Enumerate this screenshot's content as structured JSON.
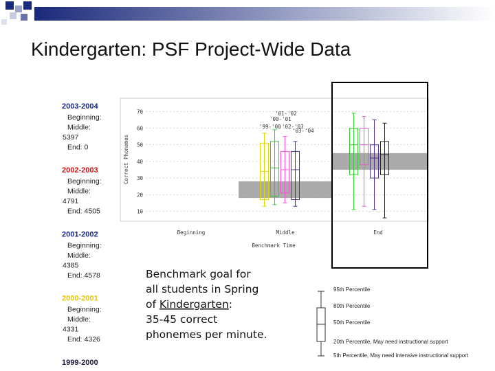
{
  "title": "Kindergarten: PSF Project-Wide Data",
  "sidebar": [
    {
      "year": "2003-2004",
      "color": "#1a2a8a",
      "lines": [
        "Beginning:",
        "Middle:",
        "5397",
        "End: 0"
      ]
    },
    {
      "year": "2002-2003",
      "color": "#cc1111",
      "lines": [
        "Beginning:",
        "Middle:",
        "4791",
        "End: 4505"
      ]
    },
    {
      "year": "2001-2002",
      "color": "#1a2a8a",
      "lines": [
        "Beginning:",
        "Middle:",
        "4385",
        "End: 4578"
      ]
    },
    {
      "year": "2000-2001",
      "color": "#e8c400",
      "lines": [
        "Beginning:",
        "Middle:",
        "4331",
        "End: 4326"
      ]
    },
    {
      "year": "1999-2000",
      "color": "#1a1a40",
      "lines": []
    }
  ],
  "goal_text": [
    [
      "Benchmark goal for"
    ],
    [
      "all students in Spring"
    ],
    [
      "of ",
      "Kindergarten",
      ":"
    ],
    [
      "35-45 correct"
    ],
    [
      "phonemes per minute."
    ]
  ],
  "legend_labels": [
    "95th Percentile",
    "80th Percentile",
    "50th Percentile",
    "20th Percentile, May need instructional support",
    "5th Percentile, May need intensive instructional support"
  ],
  "chart_data": {
    "type": "boxplot",
    "y_label": "Correct Phonemes",
    "x_label": "Benchmark Time",
    "categories": [
      "Beginning",
      "Middle",
      "End"
    ],
    "ylim": [
      4,
      78
    ],
    "yticks": [
      10,
      20,
      30,
      40,
      50,
      60,
      70
    ],
    "grid": true,
    "benchmark_bands": [
      [
        18,
        28
      ],
      [
        35,
        45
      ]
    ],
    "series": [
      {
        "name": "'99-'00",
        "color": "#e0d800",
        "values": [
          null,
          {
            "min": 13,
            "q1": 17,
            "median": 34,
            "q3": 51,
            "max": 57
          },
          null
        ]
      },
      {
        "name": "'00-'01",
        "color": "#33cc33",
        "values": [
          null,
          {
            "min": 14,
            "q1": 19,
            "median": 36,
            "q3": 52,
            "max": 59
          },
          {
            "min": 11,
            "q1": 32,
            "median": 50,
            "q3": 60,
            "max": 69
          }
        ]
      },
      {
        "name": "'01-'02",
        "color": "#ee55cc",
        "values": [
          null,
          {
            "min": 15,
            "q1": 21,
            "median": 35,
            "q3": 46,
            "max": 55
          },
          {
            "min": 13,
            "q1": 38,
            "median": 50,
            "q3": 60,
            "max": 67
          }
        ]
      },
      {
        "name": "'02-'03",
        "color": "#553388",
        "values": [
          null,
          {
            "min": 13,
            "q1": 17,
            "median": 35,
            "q3": 46,
            "max": 52
          },
          {
            "min": 11,
            "q1": 30,
            "median": 42,
            "q3": 50,
            "max": 65
          }
        ]
      },
      {
        "name": "'03-'04",
        "color": "#222222",
        "values": [
          null,
          null,
          {
            "min": 6,
            "q1": 32,
            "median": 44,
            "q3": 52,
            "max": 63
          }
        ]
      }
    ]
  }
}
